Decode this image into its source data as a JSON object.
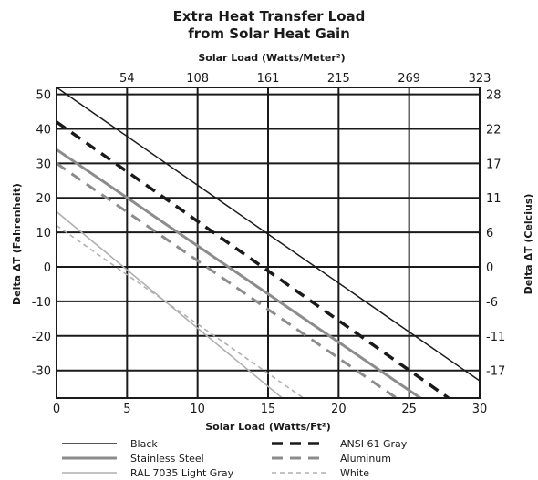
{
  "chart_data": {
    "type": "line",
    "title": [
      "Extra Heat Transfer Load",
      "from Solar Heat Gain"
    ],
    "xlabel": "Solar Load (Watts/Ft²)",
    "x2label": "Solar Load (Watts/Meter²)",
    "ylabel": "Delta ΔT (Fahrenheit)",
    "y2label": "Delta ΔT (Celcius)",
    "xlim": [
      0,
      30
    ],
    "ylim": [
      -38,
      52
    ],
    "grid": true,
    "legend_position": "bottom",
    "x_ticks": [
      "0",
      "5",
      "10",
      "15",
      "20",
      "25",
      "30"
    ],
    "x_tick_values": [
      0,
      5,
      10,
      15,
      20,
      25,
      30
    ],
    "y_ticks": [
      "50",
      "40",
      "30",
      "20",
      "10",
      "0",
      "-10",
      "-20",
      "-30"
    ],
    "y_tick_values": [
      50,
      40,
      30,
      20,
      10,
      0,
      -10,
      -20,
      -30
    ],
    "x2_ticks": [
      "54",
      "108",
      "161",
      "215",
      "269",
      "323"
    ],
    "y2_ticks": [
      "28",
      "22",
      "17",
      "11",
      "6",
      "0",
      "-6",
      "-11",
      "-17"
    ],
    "series": [
      {
        "name": "Black",
        "x": [
          0,
          30
        ],
        "y": [
          52,
          -33
        ],
        "color": "#1a1a1a",
        "width": 1.5,
        "dash": ""
      },
      {
        "name": "ANSI 61 Gray",
        "x": [
          0,
          27.8
        ],
        "y": [
          42,
          -38
        ],
        "color": "#1a1a1a",
        "width": 3.5,
        "dash": "12,8"
      },
      {
        "name": "Stainless Steel",
        "x": [
          0,
          25.8
        ],
        "y": [
          34,
          -38
        ],
        "color": "#8c8c8c",
        "width": 3,
        "dash": ""
      },
      {
        "name": "Aluminum",
        "x": [
          0,
          24.1
        ],
        "y": [
          30,
          -38
        ],
        "color": "#8c8c8c",
        "width": 3,
        "dash": "12,8"
      },
      {
        "name": "RAL 7035 Light Gray",
        "x": [
          0,
          16
        ],
        "y": [
          16,
          -38
        ],
        "color": "#b0b0b0",
        "width": 1.6,
        "dash": ""
      },
      {
        "name": "White",
        "x": [
          0,
          17.5
        ],
        "y": [
          12,
          -38
        ],
        "color": "#b0b0b0",
        "width": 1.6,
        "dash": "5,4"
      }
    ]
  }
}
